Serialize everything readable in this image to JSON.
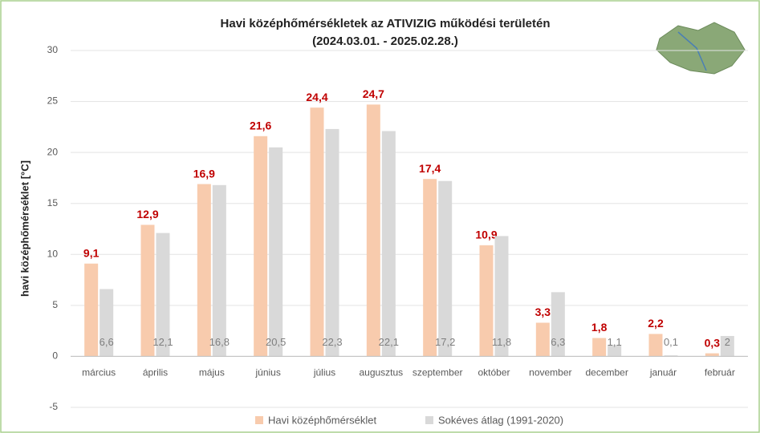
{
  "chart_data": {
    "type": "bar",
    "title": "Havi középhőmérsékletek az ATIVIZIG működési területén",
    "subtitle": "(2024.03.01. - 2025.02.28.)",
    "y_label": "havi középhőmérséklet [°C]",
    "categories": [
      "március",
      "április",
      "május",
      "június",
      "július",
      "augusztus",
      "szeptember",
      "október",
      "november",
      "december",
      "január",
      "február"
    ],
    "series": [
      {
        "name": "Havi középhőmérséklet",
        "color": "#f8cbad",
        "values": [
          9.1,
          12.9,
          16.9,
          21.6,
          24.4,
          24.7,
          17.4,
          10.9,
          3.3,
          1.8,
          2.2,
          0.3
        ],
        "value_labels": [
          "9,1",
          "12,9",
          "16,9",
          "21,6",
          "24,4",
          "24,7",
          "17,4",
          "10,9",
          "3,3",
          "1,8",
          "2,2",
          "0,3"
        ]
      },
      {
        "name": "Sokéves átlag (1991-2020)",
        "color": "#d9d9d9",
        "values": [
          6.6,
          12.1,
          16.8,
          20.5,
          22.3,
          22.1,
          17.2,
          11.8,
          6.3,
          1.1,
          0.1,
          2
        ],
        "value_labels": [
          "6,6",
          "12,1",
          "16,8",
          "20,5",
          "22,3",
          "22,1",
          "17,2",
          "11,8",
          "6,3",
          "1,1",
          "0,1",
          "2"
        ]
      }
    ],
    "ylim": [
      -5,
      30
    ],
    "yticks": [
      -5,
      0,
      5,
      10,
      15,
      20,
      25,
      30
    ],
    "grid": true,
    "legend": "bottom"
  }
}
